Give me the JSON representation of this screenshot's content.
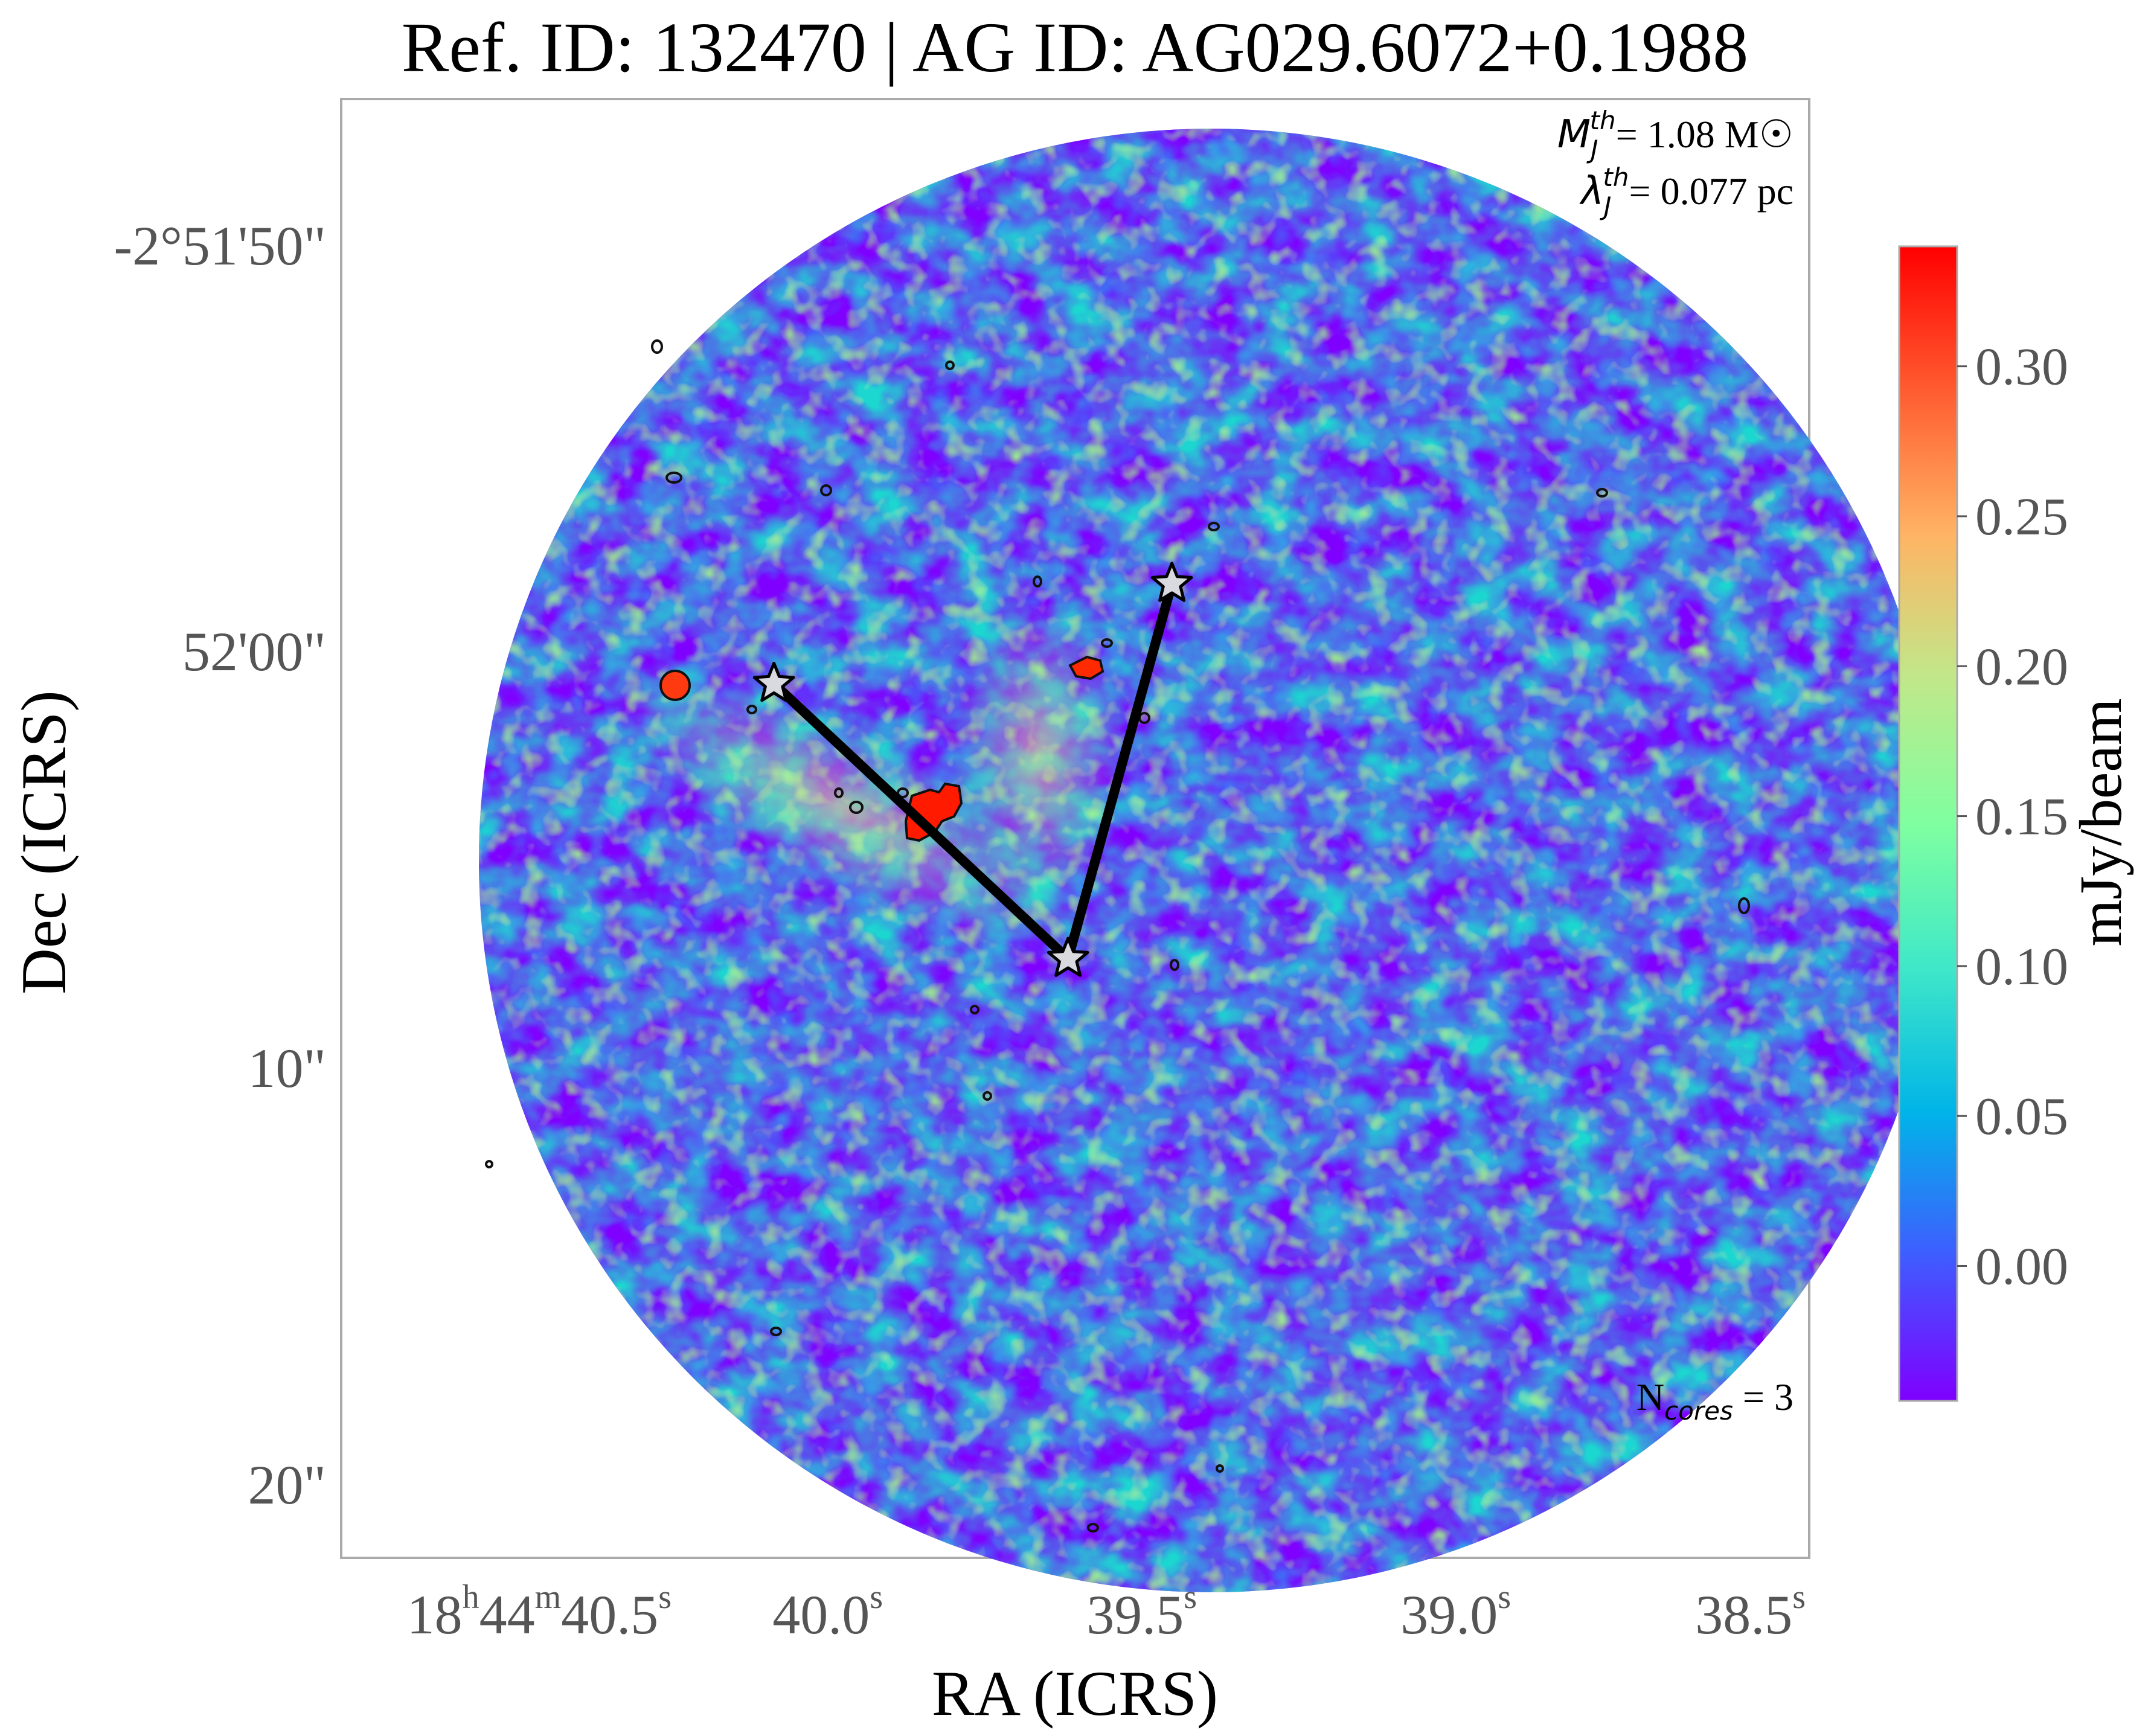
{
  "chart_data": {
    "type": "heatmap",
    "title": "Ref. ID: 132470 | AG ID: AG029.6072+0.1988",
    "xlabel": "RA (ICRS)",
    "ylabel": "Dec (ICRS)",
    "x_ticks": [
      {
        "h": "18",
        "m": "44",
        "s": "40.5"
      },
      {
        "s": "40.0"
      },
      {
        "s": "39.5"
      },
      {
        "s": "39.0"
      },
      {
        "s": "38.5"
      }
    ],
    "x_tick_units": {
      "h": "h",
      "m": "m",
      "s": "s"
    },
    "y_ticks": [
      "-2°51'50\"",
      "52'00\"",
      "10\"",
      "20\""
    ],
    "colorbar": {
      "label": "mJy/beam",
      "ticks": [
        "0.30",
        "0.25",
        "0.20",
        "0.15",
        "0.10",
        "0.05",
        "0.00"
      ],
      "range": [
        -0.045,
        0.34
      ],
      "colormap": "rainbow",
      "colors": [
        "#7f00ff",
        "#3f5cff",
        "#00b4e8",
        "#3fe8c8",
        "#7fffa0",
        "#c0e88a",
        "#ffb464",
        "#ff5c30",
        "#ff0000"
      ]
    },
    "annotations": {
      "jeans_mass": {
        "symbol": "M",
        "sub": "J",
        "sup": "th",
        "text": "= 1.08 M☉"
      },
      "jeans_length": {
        "symbol": "λ",
        "sub": "J",
        "sup": "th",
        "text": "= 0.077 pc"
      },
      "n_cores": {
        "symbol": "N",
        "sub": "cores",
        "text": " = 3"
      }
    },
    "cores": [
      {
        "ra": "18h44m40.27s",
        "dec": "-2°52'00.5\""
      },
      {
        "ra": "18h44m39.58s",
        "dec": "-2°51'58.1\""
      },
      {
        "ra": "18h44m39.76s",
        "dec": "-2°52'07.1\""
      }
    ],
    "mst_edges": [
      [
        0,
        2
      ],
      [
        1,
        2
      ]
    ],
    "grid": false,
    "footprint": "circular"
  }
}
